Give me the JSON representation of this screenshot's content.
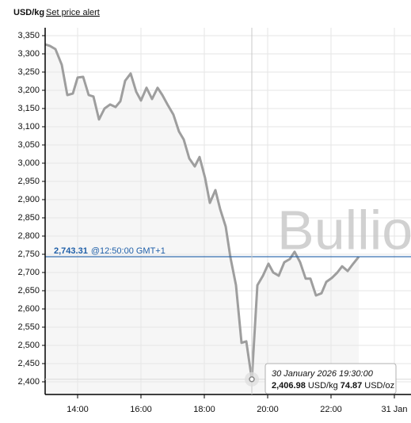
{
  "chart_data": {
    "type": "area",
    "unit_label": "USD/kg",
    "alert_link": "Set price alert",
    "watermark": "Bullio",
    "x": [
      12.975,
      13.125,
      13.3,
      13.5,
      13.675,
      13.85,
      14.0,
      14.175,
      14.35,
      14.5,
      14.675,
      14.85,
      15.025,
      15.2,
      15.35,
      15.5,
      15.675,
      15.85,
      16.0,
      16.175,
      16.35,
      16.525,
      16.675,
      16.85,
      17.025,
      17.2,
      17.35,
      17.525,
      17.7,
      17.85,
      18.025,
      18.175,
      18.35,
      18.5,
      18.675,
      18.825,
      19.0,
      19.175,
      19.325,
      19.5,
      19.675,
      19.85,
      20.025,
      20.175,
      20.35,
      20.525,
      20.7,
      20.85,
      21.025,
      21.2,
      21.35,
      21.525,
      21.7,
      21.85,
      22.025,
      22.2,
      22.35,
      22.525,
      22.7,
      22.875
    ],
    "series": [
      {
        "name": "USD/kg",
        "color": "#9e9e9e",
        "fill": "#f6f6f6",
        "values": [
          3326,
          3322,
          3313,
          3270,
          3187,
          3191,
          3235,
          3237,
          3187,
          3183,
          3120,
          3150,
          3161,
          3154,
          3170,
          3226,
          3246,
          3196,
          3172,
          3207,
          3176,
          3207,
          3187,
          3159,
          3133,
          3087,
          3065,
          3013,
          2991,
          3017,
          2959,
          2891,
          2926,
          2874,
          2826,
          2741,
          2665,
          2507,
          2511,
          2406.98,
          2665,
          2691,
          2724,
          2700,
          2691,
          2728,
          2737,
          2757,
          2728,
          2683,
          2683,
          2637,
          2643,
          2674,
          2685,
          2700,
          2717,
          2704,
          2724,
          2743
        ]
      }
    ],
    "xlim": [
      12.975,
      24.525
    ],
    "xticks": [
      {
        "value": 14,
        "label": "14:00"
      },
      {
        "value": 16,
        "label": "16:00"
      },
      {
        "value": 18,
        "label": "18:00"
      },
      {
        "value": 20,
        "label": "20:00"
      },
      {
        "value": 22,
        "label": "22:00"
      },
      {
        "value": 24,
        "label": "31 Jan"
      }
    ],
    "ylim": [
      2365.2,
      3371.7
    ],
    "yticks": [
      {
        "value": 2400,
        "label": "2,400"
      },
      {
        "value": 2450,
        "label": "2,450"
      },
      {
        "value": 2500,
        "label": "2,500"
      },
      {
        "value": 2550,
        "label": "2,550"
      },
      {
        "value": 2600,
        "label": "2,600"
      },
      {
        "value": 2650,
        "label": "2,650"
      },
      {
        "value": 2700,
        "label": "2,700"
      },
      {
        "value": 2750,
        "label": "2,750"
      },
      {
        "value": 2800,
        "label": "2,800"
      },
      {
        "value": 2850,
        "label": "2,850"
      },
      {
        "value": 2900,
        "label": "2,900"
      },
      {
        "value": 2950,
        "label": "2,950"
      },
      {
        "value": 3000,
        "label": "3,000"
      },
      {
        "value": 3050,
        "label": "3,050"
      },
      {
        "value": 3100,
        "label": "3,100"
      },
      {
        "value": 3150,
        "label": "3,150"
      },
      {
        "value": 3200,
        "label": "3,200"
      },
      {
        "value": 3250,
        "label": "3,250"
      },
      {
        "value": 3300,
        "label": "3,300"
      },
      {
        "value": 3350,
        "label": "3,350"
      }
    ],
    "grid": true,
    "reference_line": {
      "value": 2743.31,
      "label": "2,743.31",
      "text": "@12:50:00 GMT+1",
      "color": "#1f5fa8"
    },
    "tooltip": {
      "date": "30 January 2026 19:30:00",
      "price_kg": "2,406.98",
      "unit_kg": "USD/kg",
      "price_oz": "74.87",
      "unit_oz": "USD/oz"
    }
  }
}
